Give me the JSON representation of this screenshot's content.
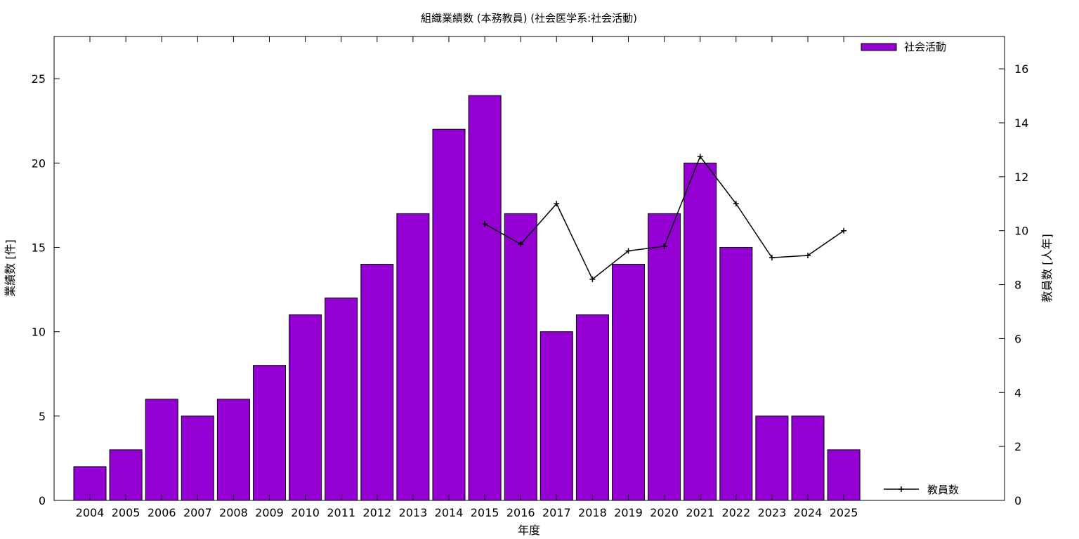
{
  "chart_data": {
    "type": "bar",
    "title": "組織業績数 (本務教員) (社会医学系:社会活動)",
    "xlabel": "年度",
    "ylabel": "業績数 [件]",
    "y2label": "教員数 [人年]",
    "ylim": [
      0,
      27.5
    ],
    "y2lim": [
      0,
      17.2
    ],
    "yticks": [
      0,
      5,
      10,
      15,
      20,
      25
    ],
    "y2ticks": [
      0,
      2,
      4,
      6,
      8,
      10,
      12,
      14,
      16
    ],
    "categories": [
      "2004",
      "2005",
      "2006",
      "2007",
      "2008",
      "2009",
      "2010",
      "2011",
      "2012",
      "2013",
      "2014",
      "2015",
      "2016",
      "2017",
      "2018",
      "2019",
      "2020",
      "2021",
      "2022",
      "2023",
      "2024",
      "2025"
    ],
    "series": [
      {
        "name": "社会活動",
        "type": "bar",
        "axis": "left",
        "color": "#9400d3",
        "values": [
          2,
          3,
          6,
          5,
          6,
          8,
          11,
          12,
          14,
          17,
          22,
          24,
          17,
          10,
          11,
          14,
          17,
          20,
          15,
          5,
          5,
          3
        ]
      },
      {
        "name": "教員数",
        "type": "line",
        "axis": "right",
        "color": "#000000",
        "x": [
          "2015",
          "2016",
          "2017",
          "2018",
          "2019",
          "2020",
          "2021",
          "2022",
          "2023",
          "2024",
          "2025"
        ],
        "values": [
          10.25,
          9.5,
          11.0,
          8.2,
          9.25,
          9.42,
          12.75,
          11.0,
          9.0,
          9.08,
          10.0
        ]
      }
    ],
    "legend": {
      "bar_position": "top-right",
      "line_position": "bottom-right"
    },
    "grid": false
  }
}
